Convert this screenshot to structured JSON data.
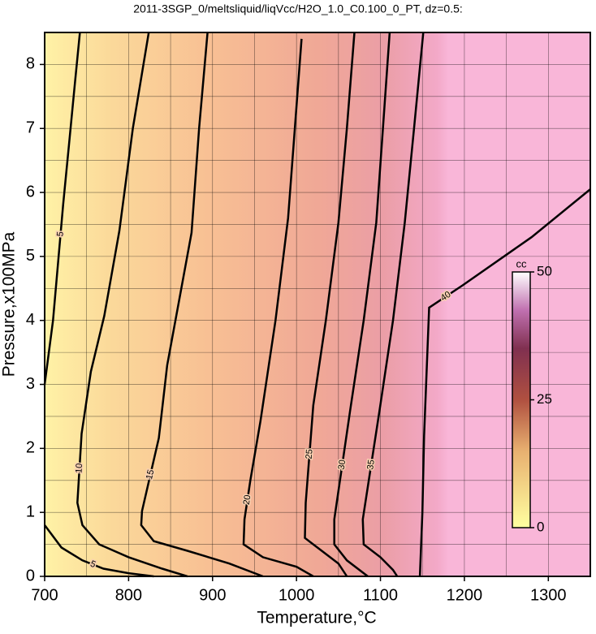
{
  "chart_data": {
    "type": "contour",
    "title": "2011-3SGP_0/meltsliquid/liqVcc/H2O_1.0_C0.100_0_PT, dz=0.5:",
    "x_label": "Temperature,°C",
    "y_label": "Pressure,x100MPa",
    "xlim": [
      700,
      1350
    ],
    "ylim": [
      0,
      8.5
    ],
    "xticks": [
      700,
      800,
      900,
      1000,
      1100,
      1200,
      1300
    ],
    "yticks": [
      0,
      1,
      2,
      3,
      4,
      5,
      6,
      7,
      8
    ],
    "xgrid": [
      750,
      850,
      950,
      1050,
      1150,
      1250,
      1350
    ],
    "ygrid": [
      0.5,
      1.5,
      2.5,
      3.5,
      4.5,
      5.5,
      6.5,
      7.5,
      8.5
    ],
    "color": "#000000",
    "series": [
      {
        "name": "5",
        "x": [
          742,
          736,
          729,
          722,
          716,
          710,
          703,
          700,
          null,
          700,
          720,
          745,
          770,
          800,
          830
        ],
        "y": [
          8.5,
          7.7,
          6.75,
          5.8,
          4.9,
          4.0,
          3.3,
          3.0,
          null,
          0.8,
          0.45,
          0.25,
          0.12,
          0.05,
          0
        ]
      },
      {
        "name": "10",
        "x": [
          824,
          805,
          789,
          771,
          755,
          744,
          739,
          745,
          765,
          800,
          840,
          870
        ],
        "y": [
          8.5,
          7.0,
          5.4,
          4.07,
          3.2,
          2.23,
          1.15,
          0.8,
          0.5,
          0.3,
          0.12,
          0
        ]
      },
      {
        "name": "15",
        "x": [
          894,
          884,
          875,
          860,
          846,
          836,
          816,
          815,
          830,
          870,
          920,
          960
        ],
        "y": [
          8.5,
          7.0,
          5.37,
          4.3,
          3.3,
          2.16,
          1.02,
          0.8,
          0.55,
          0.4,
          0.2,
          0
        ]
      },
      {
        "name": "20",
        "x": [
          1006,
          998,
          990,
          975,
          957,
          945,
          938,
          937,
          960,
          1000,
          1020
        ],
        "y": [
          8.4,
          7.0,
          5.6,
          4.0,
          2.42,
          1.5,
          0.89,
          0.5,
          0.3,
          0.15,
          0
        ]
      },
      {
        "name": "25",
        "x": [
          1069,
          1060,
          1050,
          1035,
          1020,
          1011,
          1010,
          1030,
          1050,
          1060
        ],
        "y": [
          8.5,
          7.0,
          5.53,
          4.0,
          2.67,
          1.15,
          0.6,
          0.4,
          0.2,
          0
        ]
      },
      {
        "name": "30",
        "x": [
          1111,
          1103,
          1095,
          1080,
          1064,
          1045,
          1045,
          1060,
          1085
        ],
        "y": [
          8.5,
          7.0,
          5.53,
          4.0,
          2.6,
          0.89,
          0.5,
          0.25,
          0
        ]
      },
      {
        "name": "35",
        "x": [
          1151,
          1140,
          1129,
          1115,
          1099,
          1079,
          1080,
          1100,
          1115,
          1120
        ],
        "y": [
          8.5,
          7.0,
          5.53,
          4.0,
          2.6,
          0.89,
          0.5,
          0.3,
          0.1,
          0
        ]
      },
      {
        "name": "40",
        "x": [
          1147,
          1150,
          1152,
          1158,
          1198,
          1280,
          1350
        ],
        "y": [
          0,
          1.0,
          2.2,
          4.2,
          4.55,
          5.3,
          6.05
        ]
      }
    ],
    "colorbar": {
      "label": "cc",
      "lim": [
        0,
        50
      ],
      "ticks": [
        0,
        25,
        50
      ]
    }
  }
}
